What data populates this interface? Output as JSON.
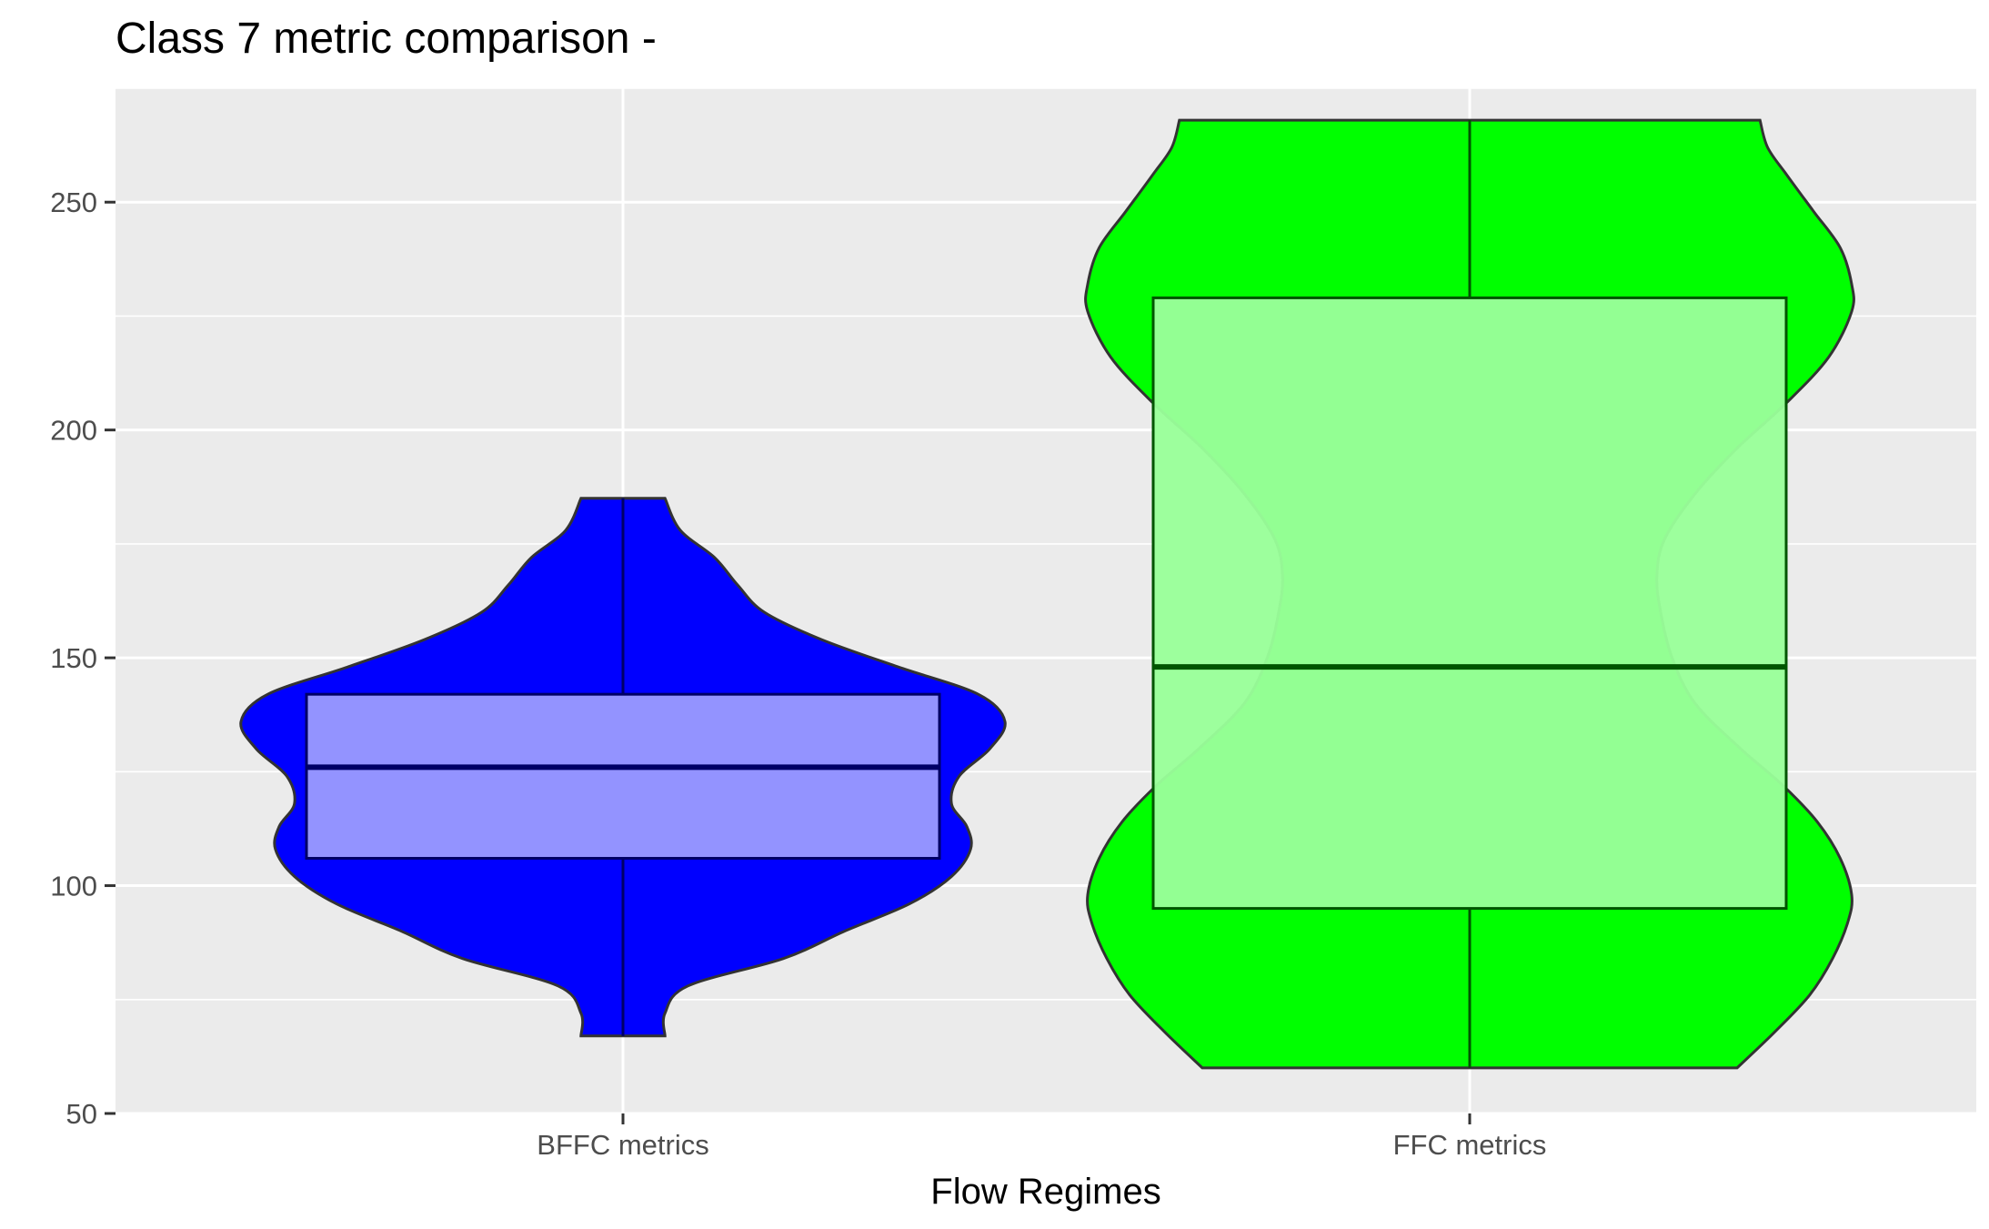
{
  "chart_data": {
    "type": "violin",
    "title": "Class 7 metric comparison -",
    "xlabel": "Flow Regimes",
    "ylabel": "",
    "categories": [
      "BFFC metrics",
      "FFC metrics"
    ],
    "ylim": [
      50,
      275
    ],
    "yticks": [
      50,
      100,
      150,
      200,
      250
    ],
    "yticks_minor": [
      75,
      125,
      175,
      225,
      275
    ],
    "grid": true,
    "legend": "none",
    "series": [
      {
        "category": "BFFC metrics",
        "violin_color": "#0000ff",
        "box_color": "#9999ff",
        "box_line_color": "#000066",
        "min": 67,
        "q1": 106,
        "median": 126,
        "q3": 142,
        "max": 185,
        "density": [
          [
            67,
            0.11
          ],
          [
            72,
            0.11
          ],
          [
            78,
            0.17
          ],
          [
            84,
            0.42
          ],
          [
            90,
            0.58
          ],
          [
            96,
            0.75
          ],
          [
            102,
            0.86
          ],
          [
            108,
            0.91
          ],
          [
            113,
            0.9
          ],
          [
            118,
            0.86
          ],
          [
            124,
            0.88
          ],
          [
            130,
            0.96
          ],
          [
            136,
            1.0
          ],
          [
            142,
            0.93
          ],
          [
            148,
            0.72
          ],
          [
            154,
            0.52
          ],
          [
            160,
            0.37
          ],
          [
            166,
            0.3
          ],
          [
            172,
            0.24
          ],
          [
            178,
            0.15
          ],
          [
            185,
            0.11
          ]
        ]
      },
      {
        "category": "FFC metrics",
        "violin_color": "#00ff00",
        "box_color": "#99ff99",
        "box_line_color": "#005500",
        "min": 60,
        "q1": 95,
        "median": 148,
        "q3": 229,
        "max": 268,
        "density": [
          [
            60,
            0.7
          ],
          [
            68,
            0.8
          ],
          [
            76,
            0.89
          ],
          [
            84,
            0.95
          ],
          [
            92,
            0.99
          ],
          [
            98,
            1.0
          ],
          [
            106,
            0.97
          ],
          [
            114,
            0.91
          ],
          [
            122,
            0.82
          ],
          [
            130,
            0.71
          ],
          [
            140,
            0.59
          ],
          [
            150,
            0.53
          ],
          [
            160,
            0.5
          ],
          [
            168,
            0.49
          ],
          [
            176,
            0.51
          ],
          [
            186,
            0.59
          ],
          [
            196,
            0.7
          ],
          [
            206,
            0.83
          ],
          [
            216,
            0.94
          ],
          [
            226,
            1.0
          ],
          [
            232,
            1.0
          ],
          [
            240,
            0.97
          ],
          [
            248,
            0.9
          ],
          [
            256,
            0.83
          ],
          [
            262,
            0.78
          ],
          [
            268,
            0.76
          ]
        ]
      }
    ]
  }
}
